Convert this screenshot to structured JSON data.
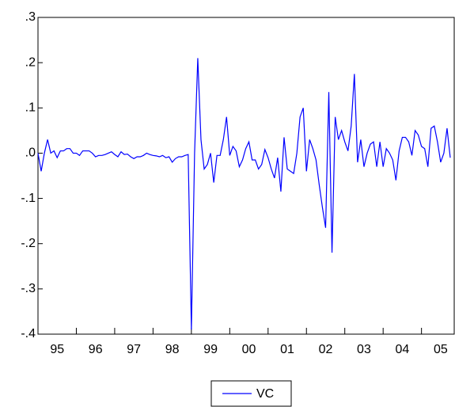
{
  "chart_data": {
    "type": "line",
    "xlim": [
      0,
      129
    ],
    "xticks": [
      {
        "value": 0,
        "label": "95"
      },
      {
        "value": 12,
        "label": "96"
      },
      {
        "value": 24,
        "label": "97"
      },
      {
        "value": 36,
        "label": "98"
      },
      {
        "value": 48,
        "label": "99"
      },
      {
        "value": 60,
        "label": "00"
      },
      {
        "value": 72,
        "label": "01"
      },
      {
        "value": 84,
        "label": "02"
      },
      {
        "value": 96,
        "label": "03"
      },
      {
        "value": 108,
        "label": "04"
      },
      {
        "value": 120,
        "label": "05"
      }
    ],
    "ylim": [
      -0.4,
      0.3
    ],
    "yticks": [
      {
        "value": 0.3,
        "label": ".3"
      },
      {
        "value": 0.2,
        "label": ".2"
      },
      {
        "value": 0.1,
        "label": ".1"
      },
      {
        "value": 0,
        "label": ".0"
      },
      {
        "value": -0.1,
        "label": "-.1"
      },
      {
        "value": -0.2,
        "label": "-.2"
      },
      {
        "value": -0.3,
        "label": "-.3"
      },
      {
        "value": -0.4,
        "label": "-.4"
      }
    ],
    "series": [
      {
        "name": "VC",
        "color": "#0000ff",
        "values": [
          0.0,
          -0.04,
          0.0,
          0.03,
          0.0,
          0.005,
          -0.01,
          0.005,
          0.005,
          0.01,
          0.01,
          0.0,
          0.0,
          -0.005,
          0.005,
          0.005,
          0.005,
          0.0,
          -0.008,
          -0.005,
          -0.005,
          -0.003,
          0.0,
          0.003,
          -0.003,
          -0.008,
          0.003,
          -0.003,
          -0.002,
          -0.008,
          -0.012,
          -0.008,
          -0.008,
          -0.005,
          0.0,
          -0.003,
          -0.005,
          -0.006,
          -0.008,
          -0.005,
          -0.01,
          -0.008,
          -0.02,
          -0.012,
          -0.008,
          -0.008,
          -0.005,
          -0.003,
          -0.39,
          0.0,
          0.21,
          0.03,
          -0.035,
          -0.025,
          0.0,
          -0.065,
          -0.005,
          -0.005,
          0.03,
          0.08,
          -0.005,
          0.015,
          0.005,
          -0.03,
          -0.015,
          0.01,
          0.025,
          -0.015,
          -0.015,
          -0.035,
          -0.025,
          0.008,
          -0.01,
          -0.035,
          -0.055,
          -0.01,
          -0.085,
          0.035,
          -0.035,
          -0.04,
          -0.045,
          0.0,
          0.08,
          0.1,
          -0.04,
          0.03,
          0.01,
          -0.015,
          -0.07,
          -0.12,
          -0.165,
          0.135,
          -0.22,
          0.08,
          0.03,
          0.05,
          0.025,
          0.005,
          0.06,
          0.175,
          -0.02,
          0.03,
          -0.03,
          0.0,
          0.02,
          0.025,
          -0.03,
          0.025,
          -0.03,
          0.01,
          0.0,
          -0.015,
          -0.06,
          0.005,
          0.035,
          0.035,
          0.025,
          -0.005,
          0.05,
          0.04,
          0.015,
          0.01,
          -0.03,
          0.055,
          0.06,
          0.025,
          -0.02,
          0.0,
          0.055,
          -0.01
        ]
      }
    ],
    "legend": "bottom"
  }
}
